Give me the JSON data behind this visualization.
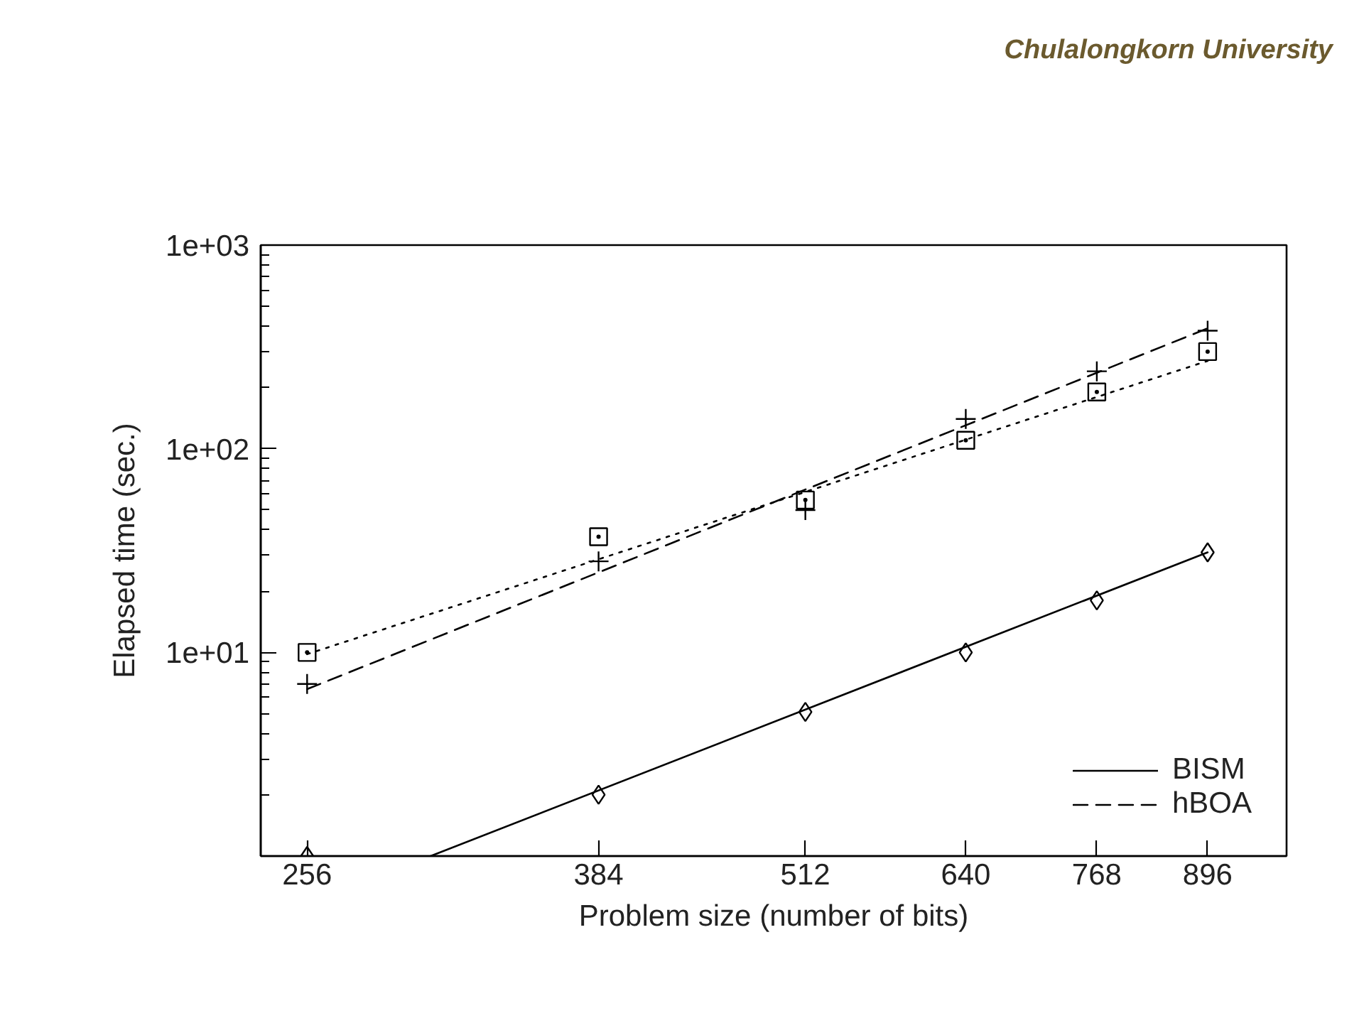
{
  "chart_data": {
    "type": "scatter",
    "xlabel": "Problem size (number of bits)",
    "ylabel": "Elapsed time (sec.)",
    "annotations": [
      "Chulalongkorn University"
    ],
    "log": "xy",
    "xlim": [
      240,
      1000
    ],
    "ylim": [
      1,
      1000
    ],
    "xticks": [
      256,
      384,
      512,
      640,
      768,
      896
    ],
    "yticks": [
      {
        "value": 2,
        "label": null
      },
      {
        "value": 3,
        "label": null
      },
      {
        "value": 4,
        "label": null
      },
      {
        "value": 5,
        "label": null
      },
      {
        "value": 6,
        "label": null
      },
      {
        "value": 7,
        "label": null
      },
      {
        "value": 8,
        "label": null
      },
      {
        "value": 9,
        "label": null
      },
      {
        "value": 10,
        "label": "1e+01"
      },
      {
        "value": 20,
        "label": null
      },
      {
        "value": 30,
        "label": null
      },
      {
        "value": 40,
        "label": null
      },
      {
        "value": 50,
        "label": null
      },
      {
        "value": 60,
        "label": null
      },
      {
        "value": 70,
        "label": null
      },
      {
        "value": 80,
        "label": null
      },
      {
        "value": 90,
        "label": null
      },
      {
        "value": 100,
        "label": "1e+02"
      },
      {
        "value": 200,
        "label": null
      },
      {
        "value": 300,
        "label": null
      },
      {
        "value": 400,
        "label": null
      },
      {
        "value": 500,
        "label": null
      },
      {
        "value": 600,
        "label": null
      },
      {
        "value": 700,
        "label": null
      },
      {
        "value": 800,
        "label": null
      },
      {
        "value": 900,
        "label": null
      },
      {
        "value": 1000,
        "label": "1e+03"
      }
    ],
    "grid": false,
    "legend": "bottom right",
    "x": [
      256,
      384,
      512,
      640,
      768,
      896
    ],
    "series": [
      {
        "type": "line",
        "name": "BISM",
        "color": "#000000",
        "line_style": "solid",
        "x": [
          304,
          896
        ],
        "values": [
          1.0,
          31
        ]
      },
      {
        "type": "line",
        "name": "hBOA",
        "color": "#000000",
        "line_style": "dashed",
        "x": [
          256,
          896
        ],
        "values": [
          6.6,
          390
        ]
      },
      {
        "type": "line",
        "color": "#000000",
        "line_style": "dotted",
        "x": [
          256,
          896
        ],
        "values": [
          9.8,
          270
        ]
      },
      {
        "color": "#000000",
        "marker": "diamond",
        "values": [
          1.0,
          2.0,
          5.1,
          10,
          18,
          31
        ]
      },
      {
        "color": "#000000",
        "marker": "cross",
        "values": [
          7.0,
          28,
          50,
          140,
          240,
          380
        ]
      },
      {
        "color": "#000000",
        "marker": "square",
        "values": [
          10,
          37,
          56,
          110,
          190,
          300
        ]
      }
    ]
  }
}
